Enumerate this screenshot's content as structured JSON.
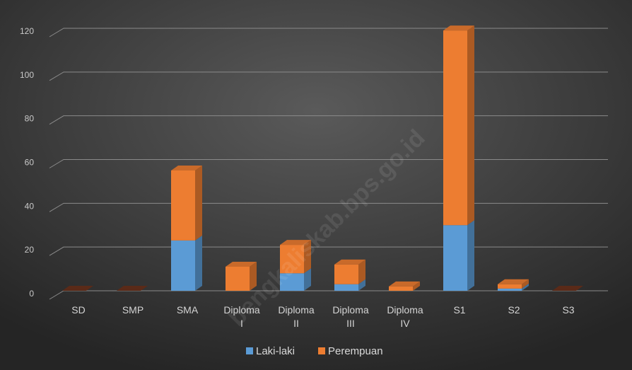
{
  "chart_data": {
    "type": "bar",
    "stacked": true,
    "style": "3d",
    "categories": [
      [
        "SD"
      ],
      [
        "SMP"
      ],
      [
        "SMA"
      ],
      [
        "Diploma",
        "I"
      ],
      [
        "Diploma",
        "II"
      ],
      [
        "Diploma",
        "III"
      ],
      [
        "Diploma",
        "IV"
      ],
      [
        "S1"
      ],
      [
        "S2"
      ],
      [
        "S3"
      ]
    ],
    "series": [
      {
        "name": "Laki-laki",
        "values": [
          0,
          0,
          23,
          0,
          8,
          3,
          0,
          30,
          1,
          0
        ]
      },
      {
        "name": "Perempuan",
        "values": [
          0,
          0,
          32,
          11,
          13,
          9,
          2,
          89,
          2,
          0
        ]
      }
    ],
    "yticks": [
      0,
      20,
      40,
      60,
      80,
      100,
      120
    ],
    "ylim": [
      0,
      120
    ],
    "grid": true,
    "legend_position": "bottom",
    "colors": {
      "Laki-laki": "#5b9bd5",
      "Perempuan": "#ed7d31"
    },
    "watermark": "bengkaliskab.bps.go.id"
  }
}
